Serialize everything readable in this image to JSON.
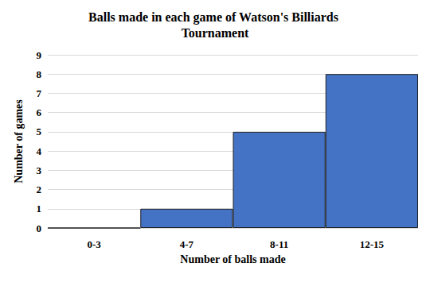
{
  "chart_data": {
    "type": "bar",
    "title": "Balls made in each game of Watson's Billiards Tournament",
    "x_label": "Number of balls made",
    "y_label": "Number of games",
    "categories": [
      "0-3",
      "4-7",
      "8-11",
      "12-15"
    ],
    "values": [
      0,
      1,
      5,
      8
    ],
    "color": "#4472c4",
    "ylim": [
      0,
      9
    ],
    "yticks": [
      0,
      1,
      2,
      3,
      4,
      5,
      6,
      7,
      8,
      9
    ],
    "grid": true
  }
}
